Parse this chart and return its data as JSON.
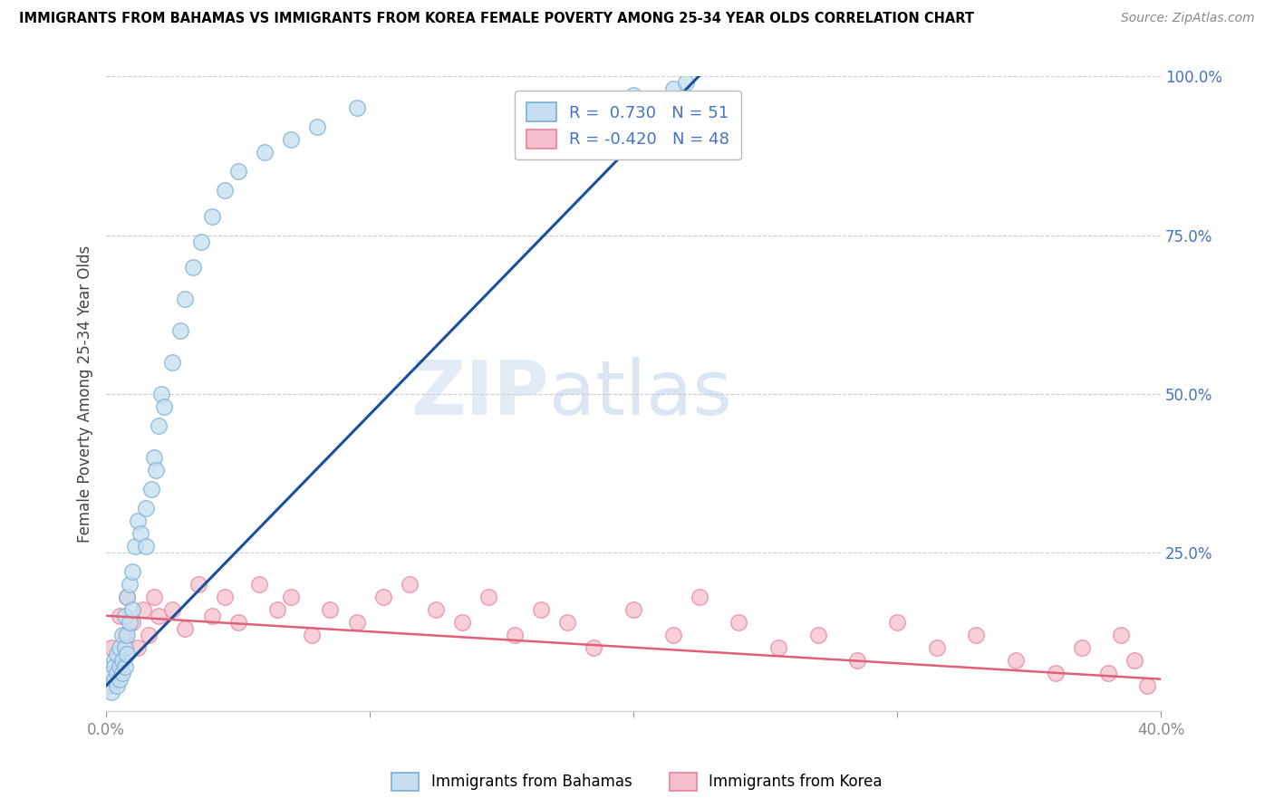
{
  "title": "IMMIGRANTS FROM BAHAMAS VS IMMIGRANTS FROM KOREA FEMALE POVERTY AMONG 25-34 YEAR OLDS CORRELATION CHART",
  "source": "Source: ZipAtlas.com",
  "ylabel": "Female Poverty Among 25-34 Year Olds",
  "xlim": [
    0.0,
    0.4
  ],
  "ylim": [
    0.0,
    1.0
  ],
  "bahamas_R": 0.73,
  "bahamas_N": 51,
  "korea_R": -0.42,
  "korea_N": 48,
  "bahamas_color": "#7aadd4",
  "bahamas_fill": "#c5dff0",
  "korea_color": "#e8829a",
  "korea_fill": "#f5c0cc",
  "trend_blue": "#1a4fa0",
  "trend_pink": "#e0607a",
  "watermark_zip": "ZIP",
  "watermark_atlas": "atlas",
  "legend_label_bahamas": "Immigrants from Bahamas",
  "legend_label_korea": "Immigrants from Korea",
  "tick_color_y": "#4472C4",
  "tick_color_x": "#888888",
  "grid_color": "#cccccc",
  "bahamas_x": [
    0.001,
    0.002,
    0.002,
    0.003,
    0.003,
    0.003,
    0.004,
    0.004,
    0.004,
    0.005,
    0.005,
    0.005,
    0.006,
    0.006,
    0.006,
    0.007,
    0.007,
    0.007,
    0.008,
    0.008,
    0.008,
    0.009,
    0.009,
    0.01,
    0.01,
    0.011,
    0.012,
    0.013,
    0.015,
    0.015,
    0.017,
    0.018,
    0.019,
    0.02,
    0.021,
    0.022,
    0.025,
    0.028,
    0.03,
    0.033,
    0.036,
    0.04,
    0.045,
    0.05,
    0.06,
    0.07,
    0.08,
    0.095,
    0.2,
    0.215,
    0.22
  ],
  "bahamas_y": [
    0.04,
    0.06,
    0.03,
    0.08,
    0.05,
    0.07,
    0.09,
    0.06,
    0.04,
    0.1,
    0.07,
    0.05,
    0.12,
    0.08,
    0.06,
    0.15,
    0.1,
    0.07,
    0.18,
    0.12,
    0.09,
    0.2,
    0.14,
    0.22,
    0.16,
    0.26,
    0.3,
    0.28,
    0.32,
    0.26,
    0.35,
    0.4,
    0.38,
    0.45,
    0.5,
    0.48,
    0.55,
    0.6,
    0.65,
    0.7,
    0.74,
    0.78,
    0.82,
    0.85,
    0.88,
    0.9,
    0.92,
    0.95,
    0.97,
    0.98,
    0.99
  ],
  "korea_x": [
    0.002,
    0.005,
    0.007,
    0.008,
    0.01,
    0.012,
    0.014,
    0.016,
    0.018,
    0.02,
    0.025,
    0.03,
    0.035,
    0.04,
    0.045,
    0.05,
    0.058,
    0.065,
    0.07,
    0.078,
    0.085,
    0.095,
    0.105,
    0.115,
    0.125,
    0.135,
    0.145,
    0.155,
    0.165,
    0.175,
    0.185,
    0.2,
    0.215,
    0.225,
    0.24,
    0.255,
    0.27,
    0.285,
    0.3,
    0.315,
    0.33,
    0.345,
    0.36,
    0.37,
    0.38,
    0.385,
    0.39,
    0.395
  ],
  "korea_y": [
    0.1,
    0.15,
    0.12,
    0.18,
    0.14,
    0.1,
    0.16,
    0.12,
    0.18,
    0.15,
    0.16,
    0.13,
    0.2,
    0.15,
    0.18,
    0.14,
    0.2,
    0.16,
    0.18,
    0.12,
    0.16,
    0.14,
    0.18,
    0.2,
    0.16,
    0.14,
    0.18,
    0.12,
    0.16,
    0.14,
    0.1,
    0.16,
    0.12,
    0.18,
    0.14,
    0.1,
    0.12,
    0.08,
    0.14,
    0.1,
    0.12,
    0.08,
    0.06,
    0.1,
    0.06,
    0.12,
    0.08,
    0.04
  ]
}
